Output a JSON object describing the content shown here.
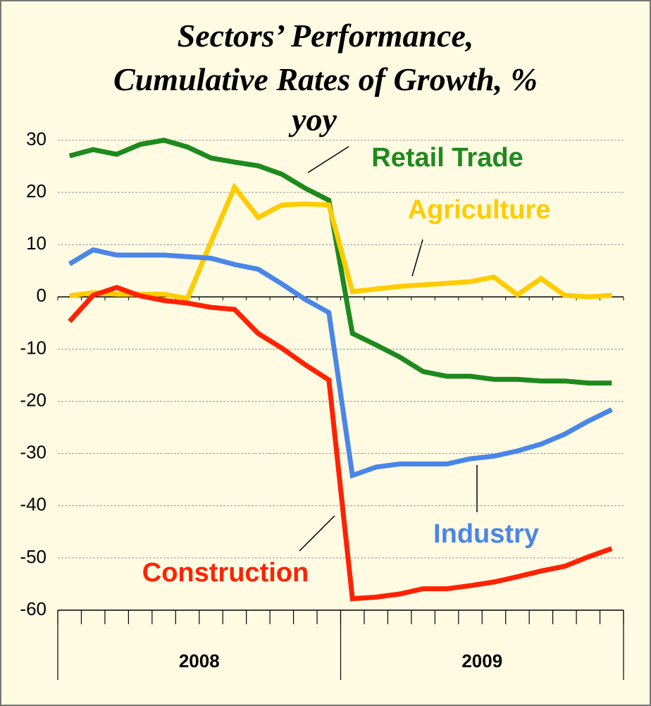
{
  "chart_data": {
    "type": "line",
    "title": [
      "Sectors’ Performance,",
      "Cumulative Rates of Growth, %",
      "yoy"
    ],
    "categories": [
      null,
      null,
      null,
      null,
      null,
      null,
      null,
      null,
      null,
      null,
      null,
      null,
      null,
      null,
      null,
      null,
      null,
      null,
      null,
      null,
      null,
      null,
      null,
      null
    ],
    "groups": [
      "2008",
      "2009"
    ],
    "ylim": [
      -60,
      30
    ],
    "yticks": [
      30,
      20,
      10,
      0,
      -10,
      -20,
      -30,
      -40,
      -50,
      -60
    ],
    "grid": true,
    "series": [
      {
        "name": "Retail Trade",
        "color": "#1e8a1e",
        "values": [
          27,
          28.2,
          27.3,
          29.2,
          30,
          28.7,
          26.6,
          25.8,
          25.1,
          23.5,
          20.8,
          18.5,
          -7,
          -9.2,
          -11.5,
          -14.3,
          -15.2,
          -15.2,
          -15.8,
          -15.8,
          -16.1,
          -16.1,
          -16.5,
          -16.5
        ]
      },
      {
        "name": "Agriculture",
        "color": "#ffcc00",
        "values": [
          0.2,
          0.8,
          0.5,
          0.5,
          0.5,
          -0.3,
          10.5,
          21,
          15.2,
          17.6,
          17.8,
          17.6,
          1,
          1.5,
          2,
          2.3,
          2.6,
          2.9,
          3.8,
          0.4,
          3.5,
          0.3,
          0,
          0.3
        ]
      },
      {
        "name": "Industry",
        "color": "#4a86e8",
        "values": [
          6.3,
          9,
          8,
          8,
          8,
          7.7,
          7.4,
          6.2,
          5.3,
          2.5,
          -0.5,
          -3,
          -34.2,
          -32.6,
          -32,
          -32,
          -32,
          -31,
          -30.5,
          -29.5,
          -28.2,
          -26.3,
          -23.8,
          -21.6
        ]
      },
      {
        "name": "Construction",
        "color": "#ff2200",
        "values": [
          -4.7,
          0.3,
          1.8,
          0.2,
          -0.7,
          -1.2,
          -2,
          -2.4,
          -7,
          -9.8,
          -13,
          -15.9,
          -57.8,
          -57.5,
          -56.9,
          -55.9,
          -55.9,
          -55.3,
          -54.6,
          -53.6,
          -52.5,
          -51.6,
          -49.8,
          -48.2
        ]
      }
    ]
  }
}
